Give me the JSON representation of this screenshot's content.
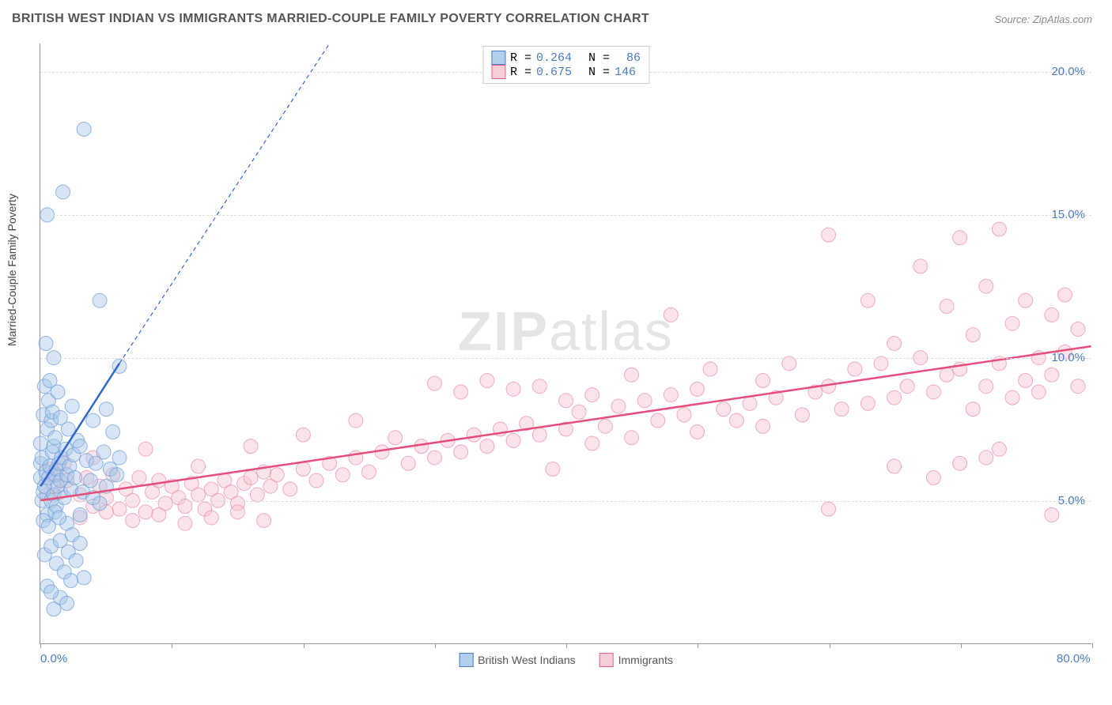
{
  "header": {
    "title": "BRITISH WEST INDIAN VS IMMIGRANTS MARRIED-COUPLE FAMILY POVERTY CORRELATION CHART",
    "source": "Source: ZipAtlas.com"
  },
  "watermark": {
    "bold": "ZIP",
    "light": "atlas"
  },
  "chart": {
    "type": "scatter",
    "background_color": "#ffffff",
    "grid_color": "#dddddd",
    "axis_color": "#999999",
    "ylabel": "Married-Couple Family Poverty",
    "label_fontsize": 14,
    "tick_fontsize": 15,
    "tick_color": "#4a7bc4",
    "xlim": [
      0,
      80
    ],
    "ylim": [
      0,
      21
    ],
    "x_ticks": [
      0,
      10,
      20,
      30,
      40,
      50,
      60,
      70,
      80
    ],
    "x_tick_labels": {
      "0": "0.0%",
      "80": "80.0%"
    },
    "y_ticks": [
      5,
      10,
      15,
      20
    ],
    "y_tick_labels": {
      "5": "5.0%",
      "10": "10.0%",
      "15": "15.0%",
      "20": "20.0%"
    },
    "marker_radius": 9,
    "marker_opacity": 0.45,
    "series": [
      {
        "id": "bwi",
        "name": "British West Indians",
        "fill": "#a7c5e8",
        "stroke": "#6a9bd8",
        "swatch_fill": "#b3cfee",
        "swatch_stroke": "#4a7bc4",
        "trend_color": "#3366cc",
        "trend_width": 2.5,
        "trend_solid": {
          "x1": 0,
          "y1": 5.5,
          "x2": 6,
          "y2": 9.8
        },
        "trend_dashed": {
          "x1": 6,
          "y1": 9.8,
          "x2": 22,
          "y2": 21
        },
        "trend_dash": "5,4",
        "R": "0.264",
        "N": "86",
        "points": [
          [
            0,
            5.8
          ],
          [
            0,
            6.3
          ],
          [
            0,
            7
          ],
          [
            0.1,
            5
          ],
          [
            0.1,
            6.5
          ],
          [
            0.2,
            5.3
          ],
          [
            0.2,
            8
          ],
          [
            0.3,
            5.5
          ],
          [
            0.3,
            9
          ],
          [
            0.4,
            6
          ],
          [
            0.4,
            10.5
          ],
          [
            0.5,
            4.5
          ],
          [
            0.5,
            7.5
          ],
          [
            0.5,
            15
          ],
          [
            0.6,
            5.8
          ],
          [
            0.6,
            8.5
          ],
          [
            0.7,
            6.2
          ],
          [
            0.7,
            9.2
          ],
          [
            0.8,
            5
          ],
          [
            0.8,
            7.8
          ],
          [
            0.9,
            6.7
          ],
          [
            0.9,
            8.1
          ],
          [
            1,
            5.2
          ],
          [
            1,
            6.9
          ],
          [
            1,
            10
          ],
          [
            1.1,
            5.9
          ],
          [
            1.1,
            7.2
          ],
          [
            1.2,
            4.8
          ],
          [
            1.2,
            6.1
          ],
          [
            1.3,
            5.5
          ],
          [
            1.3,
            8.8
          ],
          [
            1.4,
            6.3
          ],
          [
            1.5,
            5.7
          ],
          [
            1.5,
            7.9
          ],
          [
            1.6,
            6.5
          ],
          [
            1.7,
            15.8
          ],
          [
            1.8,
            5.1
          ],
          [
            1.9,
            6.8
          ],
          [
            2,
            4.2
          ],
          [
            2,
            5.9
          ],
          [
            2.1,
            7.5
          ],
          [
            2.2,
            6.2
          ],
          [
            2.3,
            5.4
          ],
          [
            2.4,
            8.3
          ],
          [
            2.5,
            6.6
          ],
          [
            2.6,
            5.8
          ],
          [
            2.8,
            7.1
          ],
          [
            3,
            4.5
          ],
          [
            3,
            6.9
          ],
          [
            3.2,
            5.3
          ],
          [
            3.3,
            18
          ],
          [
            3.5,
            6.4
          ],
          [
            3.8,
            5.7
          ],
          [
            4,
            7.8
          ],
          [
            4,
            5.1
          ],
          [
            4.2,
            6.3
          ],
          [
            4.5,
            4.9
          ],
          [
            4.5,
            12
          ],
          [
            4.8,
            6.7
          ],
          [
            5,
            5.5
          ],
          [
            5,
            8.2
          ],
          [
            5.3,
            6.1
          ],
          [
            5.5,
            7.4
          ],
          [
            5.8,
            5.9
          ],
          [
            6,
            6.5
          ],
          [
            6,
            9.7
          ],
          [
            0.3,
            3.1
          ],
          [
            0.8,
            3.4
          ],
          [
            1.2,
            2.8
          ],
          [
            1.5,
            3.6
          ],
          [
            1.8,
            2.5
          ],
          [
            2.1,
            3.2
          ],
          [
            2.4,
            3.8
          ],
          [
            2.7,
            2.9
          ],
          [
            3,
            3.5
          ],
          [
            3.3,
            2.3
          ],
          [
            1,
            1.2
          ],
          [
            1.5,
            1.6
          ],
          [
            0.5,
            2
          ],
          [
            0.8,
            1.8
          ],
          [
            2,
            1.4
          ],
          [
            2.3,
            2.2
          ],
          [
            0.2,
            4.3
          ],
          [
            0.6,
            4.1
          ],
          [
            1.1,
            4.6
          ],
          [
            1.4,
            4.4
          ]
        ]
      },
      {
        "id": "imm",
        "name": "Immigrants",
        "fill": "#f5c4d0",
        "stroke": "#e88ba5",
        "swatch_fill": "#f7cdd8",
        "swatch_stroke": "#e06287",
        "trend_color": "#e84c7a",
        "trend_width": 2.5,
        "trend": {
          "x1": 0,
          "y1": 5.0,
          "x2": 80,
          "y2": 10.4
        },
        "R": "0.675",
        "N": "146",
        "points": [
          [
            0.5,
            5.2
          ],
          [
            0.8,
            6.1
          ],
          [
            1,
            5.5
          ],
          [
            1.2,
            5.9
          ],
          [
            1.5,
            5.3
          ],
          [
            1.8,
            6.3
          ],
          [
            2,
            5.7
          ],
          [
            3,
            5.2
          ],
          [
            3.5,
            5.8
          ],
          [
            4,
            4.8
          ],
          [
            4.5,
            5.5
          ],
          [
            5,
            5.1
          ],
          [
            5.5,
            5.9
          ],
          [
            6,
            4.7
          ],
          [
            6.5,
            5.4
          ],
          [
            7,
            5.0
          ],
          [
            7.5,
            5.8
          ],
          [
            8,
            4.6
          ],
          [
            8.5,
            5.3
          ],
          [
            9,
            5.7
          ],
          [
            9.5,
            4.9
          ],
          [
            10,
            5.5
          ],
          [
            10.5,
            5.1
          ],
          [
            11,
            4.8
          ],
          [
            11.5,
            5.6
          ],
          [
            12,
            5.2
          ],
          [
            12.5,
            4.7
          ],
          [
            13,
            5.4
          ],
          [
            13.5,
            5.0
          ],
          [
            14,
            5.7
          ],
          [
            14.5,
            5.3
          ],
          [
            15,
            4.9
          ],
          [
            15.5,
            5.6
          ],
          [
            16,
            5.8
          ],
          [
            16.5,
            5.2
          ],
          [
            17,
            6.0
          ],
          [
            17.5,
            5.5
          ],
          [
            18,
            5.9
          ],
          [
            19,
            5.4
          ],
          [
            20,
            6.1
          ],
          [
            21,
            5.7
          ],
          [
            22,
            6.3
          ],
          [
            23,
            5.9
          ],
          [
            24,
            6.5
          ],
          [
            25,
            6.0
          ],
          [
            26,
            6.7
          ],
          [
            27,
            7.2
          ],
          [
            28,
            6.3
          ],
          [
            29,
            6.9
          ],
          [
            30,
            6.5
          ],
          [
            30,
            9.1
          ],
          [
            31,
            7.1
          ],
          [
            32,
            8.8
          ],
          [
            32,
            6.7
          ],
          [
            33,
            7.3
          ],
          [
            34,
            6.9
          ],
          [
            34,
            9.2
          ],
          [
            35,
            7.5
          ],
          [
            36,
            7.1
          ],
          [
            36,
            8.9
          ],
          [
            37,
            7.7
          ],
          [
            38,
            7.3
          ],
          [
            38,
            9.0
          ],
          [
            39,
            6.1
          ],
          [
            40,
            7.5
          ],
          [
            40,
            8.5
          ],
          [
            41,
            8.1
          ],
          [
            42,
            7.0
          ],
          [
            42,
            8.7
          ],
          [
            43,
            7.6
          ],
          [
            44,
            8.3
          ],
          [
            45,
            7.2
          ],
          [
            45,
            9.4
          ],
          [
            46,
            8.5
          ],
          [
            47,
            7.8
          ],
          [
            48,
            8.7
          ],
          [
            48,
            11.5
          ],
          [
            49,
            8.0
          ],
          [
            50,
            8.9
          ],
          [
            50,
            7.4
          ],
          [
            51,
            9.6
          ],
          [
            52,
            8.2
          ],
          [
            53,
            7.8
          ],
          [
            54,
            8.4
          ],
          [
            55,
            9.2
          ],
          [
            55,
            7.6
          ],
          [
            56,
            8.6
          ],
          [
            57,
            9.8
          ],
          [
            58,
            8.0
          ],
          [
            59,
            8.8
          ],
          [
            60,
            9.0
          ],
          [
            60,
            14.3
          ],
          [
            61,
            8.2
          ],
          [
            62,
            9.6
          ],
          [
            63,
            8.4
          ],
          [
            63,
            12.0
          ],
          [
            64,
            9.8
          ],
          [
            65,
            8.6
          ],
          [
            65,
            10.5
          ],
          [
            66,
            9.0
          ],
          [
            67,
            10.0
          ],
          [
            67,
            13.2
          ],
          [
            68,
            8.8
          ],
          [
            69,
            9.4
          ],
          [
            69,
            11.8
          ],
          [
            70,
            9.6
          ],
          [
            70,
            14.2
          ],
          [
            71,
            8.2
          ],
          [
            71,
            10.8
          ],
          [
            72,
            9.0
          ],
          [
            72,
            12.5
          ],
          [
            73,
            9.8
          ],
          [
            73,
            14.5
          ],
          [
            74,
            8.6
          ],
          [
            74,
            11.2
          ],
          [
            75,
            9.2
          ],
          [
            75,
            12.0
          ],
          [
            76,
            10.0
          ],
          [
            76,
            8.8
          ],
          [
            77,
            11.5
          ],
          [
            77,
            9.4
          ],
          [
            77,
            4.5
          ],
          [
            78,
            10.2
          ],
          [
            78,
            12.2
          ],
          [
            79,
            9.0
          ],
          [
            79,
            11.0
          ],
          [
            72,
            6.5
          ],
          [
            68,
            5.8
          ],
          [
            65,
            6.2
          ],
          [
            60,
            4.7
          ],
          [
            73,
            6.8
          ],
          [
            70,
            6.3
          ],
          [
            3,
            4.4
          ],
          [
            5,
            4.6
          ],
          [
            7,
            4.3
          ],
          [
            9,
            4.5
          ],
          [
            11,
            4.2
          ],
          [
            13,
            4.4
          ],
          [
            15,
            4.6
          ],
          [
            17,
            4.3
          ],
          [
            4,
            6.5
          ],
          [
            8,
            6.8
          ],
          [
            12,
            6.2
          ],
          [
            16,
            6.9
          ],
          [
            20,
            7.3
          ],
          [
            24,
            7.8
          ]
        ]
      }
    ],
    "legend_top": {
      "R_label": "R =",
      "N_label": "N ="
    },
    "legend_bottom": {
      "bwi": "British West Indians",
      "imm": "Immigrants"
    }
  }
}
